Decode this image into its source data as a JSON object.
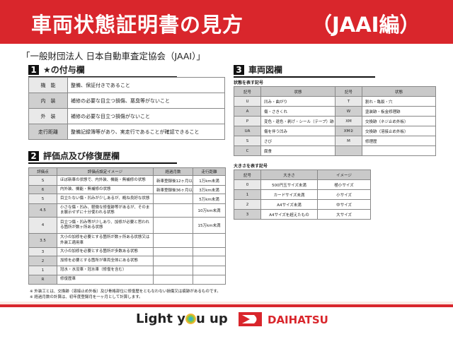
{
  "header": {
    "title": "車両状態証明書の見方",
    "subtitle": "（JAAI編）"
  },
  "organization": "「一般財団法人 日本自動車査定協会（JAAI）」",
  "section1": {
    "num": "1",
    "title": "★の付与欄",
    "rows": [
      [
        "機　能",
        "整備、保証付きであること"
      ],
      [
        "内　装",
        "補修の必要な目立つ損傷、悪臭等がないこと"
      ],
      [
        "外　装",
        "補修の必要な目立つ損傷がないこと"
      ],
      [
        "走行距離",
        "整備記録簿等があり、実走行であることが確認できること"
      ]
    ]
  },
  "section2": {
    "num": "2",
    "title": "評価点及び修復歴欄",
    "headers": [
      "評価点",
      "評価点設定イメージ",
      "経過月数",
      "走行距離"
    ],
    "rows": [
      [
        "S",
        "ほぼ新車の状態で、内外装、機能・無補修の状態",
        "新車登録後12ヶ月以内",
        "1万km未満"
      ],
      [
        "6",
        "内外装、機能・無補修の状態",
        "新車登録後36ヶ月以内",
        "3万km未満"
      ],
      [
        "5",
        "目立たない傷・凹みが少しあるが、概ね良好な状態",
        "",
        "5万km未満"
      ],
      [
        "4.5",
        "小さな傷・凹み、軽微な修復跡等があるが、そのまま展示せずに十分使われる状態",
        "",
        "10万km未満"
      ],
      [
        "4",
        "目立つ傷・凹み等が少しあり、加修が必要と思われる箇所が数ヶ所ある状態",
        "",
        "15万km未満"
      ],
      [
        "3.5",
        "大小の加修を必要とする箇所が数ヶ所ある状態又は外装工適用車",
        "",
        ""
      ],
      [
        "3",
        "大小の加修を必要とする箇所が多数ある状態",
        "",
        ""
      ],
      [
        "2",
        "加修を必要とする箇所が車両全体にある状態",
        "",
        ""
      ],
      [
        "1",
        "冠水・水没車・冠水車（修復を含む）",
        "",
        ""
      ],
      [
        "R",
        "修復歴車",
        "",
        ""
      ]
    ],
    "notes": [
      "※ 外装工とは、交換跡（溶接止め外板）及び骨格部位に修復歴をともなわない損傷又は痕跡があるものです。",
      "※ 経過月数の計算は、初年度登録月を一ヶ月として計算します。"
    ]
  },
  "section3": {
    "num": "3",
    "title": "車両図欄",
    "state_caption": "状態を表す記号",
    "state_headers": [
      "記号",
      "状態",
      "記号",
      "状態"
    ],
    "state_rows": [
      [
        "U",
        "凹み・曲がり",
        "T",
        "割れ・亀裂・穴"
      ],
      [
        "A",
        "傷・さきくれ",
        "W",
        "塗装跡・板金修理跡"
      ],
      [
        "P",
        "変色・退色・剥げ・シール（テープ）跡",
        "XM",
        "交換跡（ネジ止め外板）"
      ],
      [
        "UA",
        "傷を伴う凹み",
        "XM②",
        "交換跡（溶接止め外板）"
      ],
      [
        "S",
        "さび",
        "M",
        "修理歴"
      ],
      [
        "C",
        "腐食",
        "",
        ""
      ]
    ],
    "size_caption": "大きさを表す記号",
    "size_headers": [
      "記号",
      "大きさ",
      "イメージ"
    ],
    "size_rows": [
      [
        "0",
        "500円玉サイズ未満",
        "極小サイズ"
      ],
      [
        "1",
        "カードサイズ未満",
        "小サイズ"
      ],
      [
        "2",
        "A4サイズ未満",
        "中サイズ"
      ],
      [
        "3",
        "A4サイズを超えたもの",
        "大サイズ"
      ]
    ]
  },
  "footer": {
    "slogan_pre": "Light y",
    "slogan_post": "u up",
    "brand": "DAIHATSU"
  },
  "colors": {
    "brand_red": "#d9262c"
  }
}
